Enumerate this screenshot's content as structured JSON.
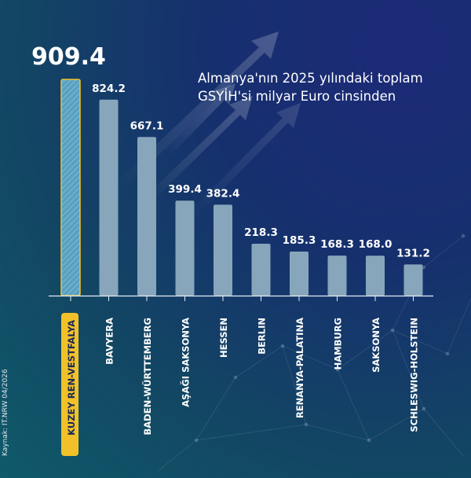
{
  "subtitle": "Almanya'nın 2025 yılındaki toplam\nGSYİH'si milyar Euro cinsinden",
  "source": "Kaynak: IT.NRW 04/2026",
  "colors": {
    "bar": "#88a6bb",
    "highlight": "#f2c12a",
    "highlight_fill": "#5aa0c0",
    "text": "#ffffff",
    "axis": "#e6edf5"
  },
  "chart_data": {
    "type": "bar",
    "categories": [
      "KUZEY REN-VESTFALYA",
      "BAVYERA",
      "BADEN-WÜRTTEMBERG",
      "AŞAĞI SAKSONYA",
      "HESSEN",
      "BERLIN",
      "RENANYA-PALATINA",
      "HAMBURG",
      "SAKSONYA",
      "SCHLESWIG-HOLSTEIN"
    ],
    "values": [
      909.4,
      824.2,
      667.1,
      399.4,
      382.4,
      218.3,
      185.3,
      168.3,
      168.0,
      131.2
    ],
    "value_labels": [
      "909.4",
      "824.2",
      "667.1",
      "399.4",
      "382.4",
      "218.3",
      "185.3",
      "168.3",
      "168.0",
      "131.2"
    ],
    "highlight_index": 0,
    "ylim": [
      0,
      909.4
    ],
    "grid": false,
    "legend": "none"
  }
}
